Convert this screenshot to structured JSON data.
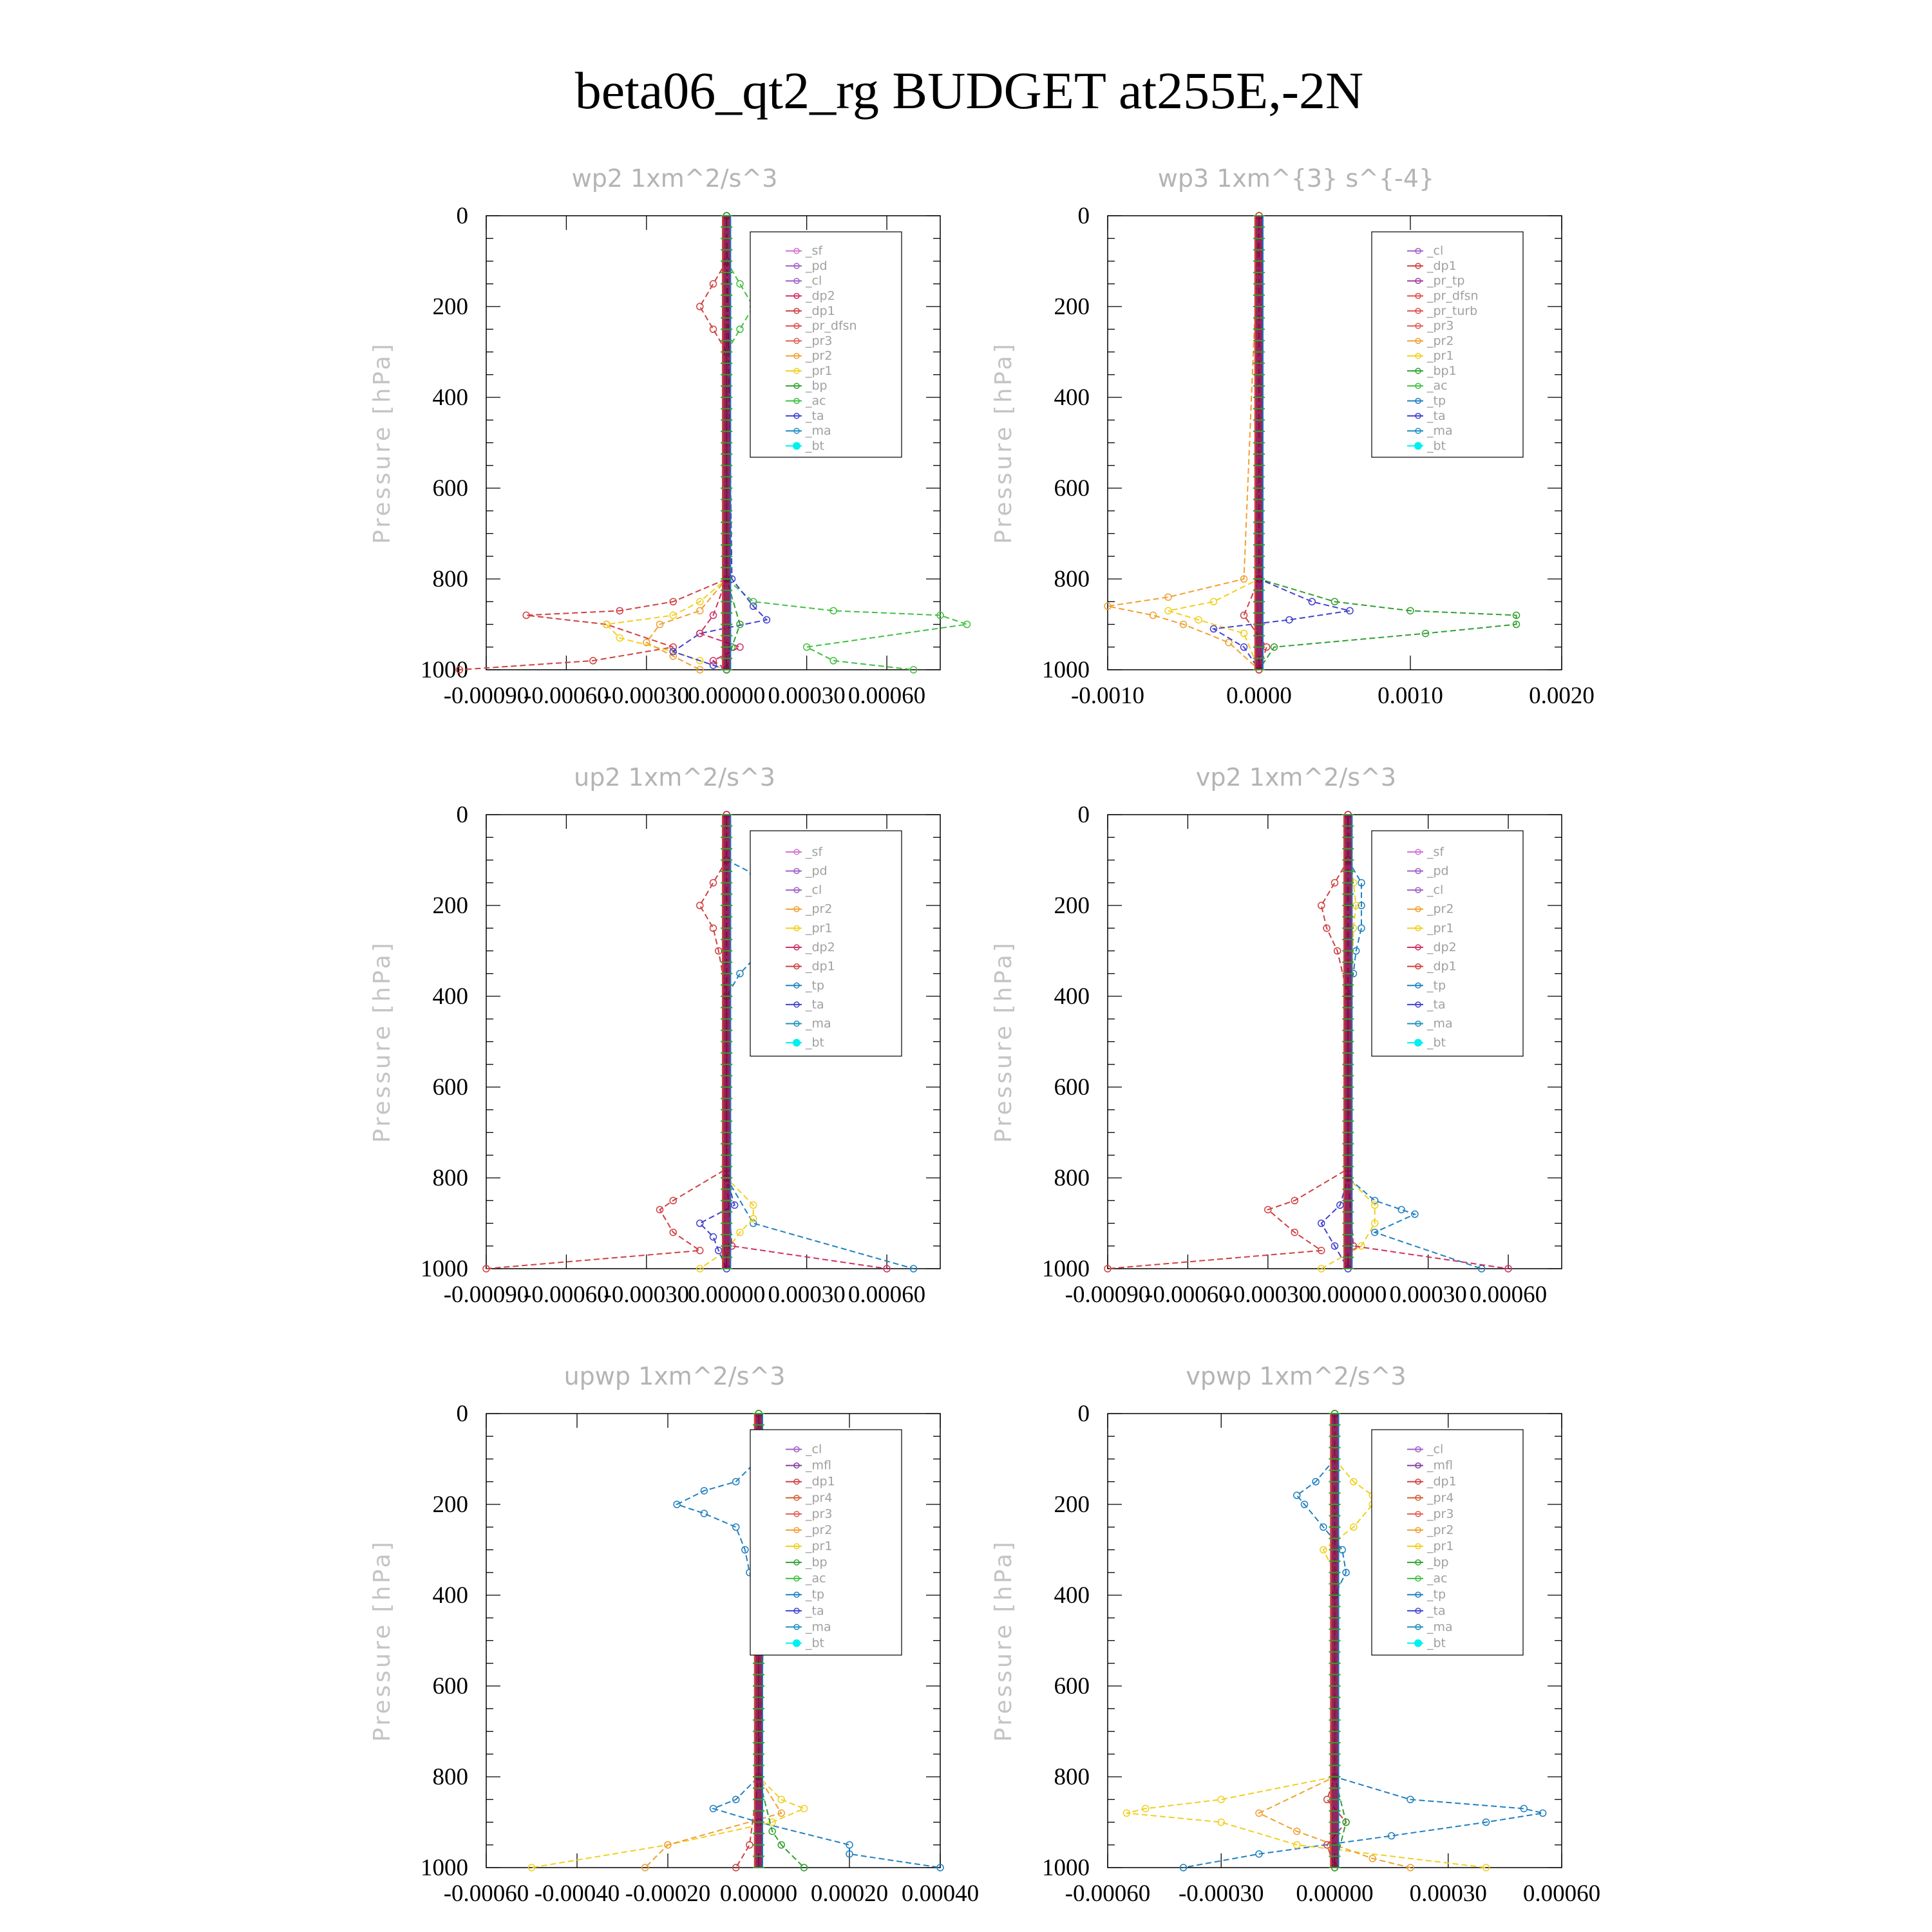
{
  "figure": {
    "title": "beta06_qt2_rg  BUDGET at255E,-2N"
  },
  "colors": {
    "sf": "#d070d0",
    "pd": "#a060c8",
    "cl": "#a060c8",
    "mfl": "#8040a0",
    "dp2": "#d03060",
    "dp1": "#d04040",
    "pr4": "#d06030",
    "pr3": "#e06050",
    "pr2": "#f0a030",
    "pr1": "#f0d020",
    "pr_dfsn": "#e05050",
    "pr_tp": "#a040a0",
    "pr_turb": "#e05050",
    "bp": "#30a030",
    "bp1": "#30a030",
    "ac": "#40c040",
    "tp": "#2080c0",
    "ta": "#4040d0",
    "ma": "#2090c0",
    "bt": "#00f0f0",
    "bar": "#800040"
  },
  "chart_data": [
    {
      "type": "line",
      "title": "wp2   1xm^2/s^3",
      "ylabel": "Pressure [hPa]",
      "xlim": [
        -0.0009,
        0.0008
      ],
      "ylim": [
        1000,
        0
      ],
      "xticks": [
        -0.0009,
        -0.0006,
        -0.0003,
        0,
        0.0003,
        0.0006
      ],
      "xtick_labels": [
        "-0.00090",
        "-0.00060",
        "-0.00030",
        "0.00000",
        "0.00030",
        "0.00060"
      ],
      "yticks": [
        0,
        200,
        400,
        600,
        800,
        1000
      ],
      "ytick_labels": [
        "0",
        "200",
        "400",
        "600",
        "800",
        "1000"
      ],
      "legend": {
        "position": "top-right",
        "entries": [
          "_sf",
          "_pd",
          "_cl",
          "_dp2",
          "_dp1",
          "_pr_dfsn",
          "_pr3",
          "_pr2",
          "_pr1",
          "_bp",
          "_ac",
          "_ta",
          "_ma",
          "_bt"
        ]
      },
      "series": [
        {
          "key": "dp1",
          "p": [
            0,
            100,
            150,
            200,
            250,
            300,
            800,
            850,
            870,
            880,
            900,
            950,
            980,
            1000
          ],
          "v": [
            0,
            0,
            -5e-05,
            -0.0001,
            -5e-05,
            0,
            0,
            -0.0002,
            -0.0004,
            -0.00075,
            -0.00045,
            -0.0002,
            -0.0005,
            -0.001
          ]
        },
        {
          "key": "ac",
          "p": [
            0,
            100,
            150,
            200,
            250,
            300,
            800,
            850,
            870,
            880,
            900,
            950,
            980,
            1000
          ],
          "v": [
            0,
            0,
            5e-05,
            0.0001,
            5e-05,
            0,
            0,
            0.0001,
            0.0004,
            0.0008,
            0.0009,
            0.0003,
            0.0004,
            0.0007
          ]
        },
        {
          "key": "pr1",
          "p": [
            0,
            800,
            850,
            880,
            900,
            930,
            960,
            980,
            1000
          ],
          "v": [
            0,
            0,
            -0.0001,
            -0.0002,
            -0.00045,
            -0.0004,
            -0.0002,
            -0.0001,
            0
          ]
        },
        {
          "key": "pr2",
          "p": [
            0,
            800,
            870,
            900,
            940,
            970,
            1000
          ],
          "v": [
            0,
            0,
            -0.0001,
            -0.00025,
            -0.0003,
            -0.0002,
            -0.0001
          ]
        },
        {
          "key": "ta",
          "p": [
            0,
            800,
            860,
            890,
            920,
            960,
            990,
            1000
          ],
          "v": [
            0,
            2e-05,
            0.0001,
            0.00015,
            -0.0001,
            -0.0002,
            -5e-05,
            0
          ]
        },
        {
          "key": "dp2",
          "p": [
            0,
            800,
            880,
            920,
            950,
            980,
            1000
          ],
          "v": [
            0,
            0,
            -5e-05,
            -0.0001,
            5e-05,
            -5e-05,
            0
          ]
        },
        {
          "key": "bp",
          "p": [
            0,
            800,
            900,
            950,
            1000
          ],
          "v": [
            0,
            0,
            5e-05,
            2e-05,
            0
          ]
        }
      ]
    },
    {
      "type": "line",
      "title": "wp3   1xm^{3} s^{-4}",
      "ylabel": "Pressure [hPa]",
      "xlim": [
        -0.001,
        0.002
      ],
      "ylim": [
        1000,
        0
      ],
      "xticks": [
        -0.001,
        0,
        0.001,
        0.002
      ],
      "xtick_labels": [
        "-0.0010",
        "0.0000",
        "0.0010",
        "0.0020"
      ],
      "yticks": [
        0,
        200,
        400,
        600,
        800,
        1000
      ],
      "ytick_labels": [
        "0",
        "200",
        "400",
        "600",
        "800",
        "1000"
      ],
      "legend": {
        "position": "top-right",
        "entries": [
          "_cl",
          "_dp1",
          "_pr_tp",
          "_pr_dfsn",
          "_pr_turb",
          "_pr3",
          "_pr2",
          "_pr1",
          "_bp1",
          "_ac",
          "_tp",
          "_ta",
          "_ma",
          "_bt"
        ]
      },
      "series": [
        {
          "key": "bp1",
          "p": [
            0,
            800,
            850,
            870,
            880,
            900,
            920,
            950,
            1000
          ],
          "v": [
            0,
            0,
            0.0005,
            0.001,
            0.0017,
            0.0017,
            0.0011,
            0.0001,
            0
          ]
        },
        {
          "key": "pr2",
          "p": [
            0,
            800,
            840,
            860,
            880,
            900,
            940,
            1000
          ],
          "v": [
            0,
            -0.0001,
            -0.0006,
            -0.001,
            -0.0007,
            -0.0005,
            -0.0002,
            0
          ]
        },
        {
          "key": "pr1",
          "p": [
            0,
            800,
            850,
            870,
            890,
            920,
            1000
          ],
          "v": [
            0,
            0,
            -0.0003,
            -0.0006,
            -0.0004,
            -0.0001,
            0
          ]
        },
        {
          "key": "ta",
          "p": [
            0,
            800,
            850,
            870,
            890,
            910,
            950,
            1000
          ],
          "v": [
            0,
            0,
            0.00035,
            0.0006,
            0.0002,
            -0.0003,
            -0.0001,
            0
          ]
        },
        {
          "key": "dp1",
          "p": [
            0,
            800,
            880,
            950,
            1000
          ],
          "v": [
            0,
            0,
            -0.0001,
            5e-05,
            0
          ]
        }
      ]
    },
    {
      "type": "line",
      "title": "up2   1xm^2/s^3",
      "ylabel": "Pressure [hPa]",
      "xlim": [
        -0.0009,
        0.0008
      ],
      "ylim": [
        1000,
        0
      ],
      "xticks": [
        -0.0009,
        -0.0006,
        -0.0003,
        0,
        0.0003,
        0.0006
      ],
      "xtick_labels": [
        "-0.00090",
        "-0.00060",
        "-0.00030",
        "0.00000",
        "0.00030",
        "0.00060"
      ],
      "yticks": [
        0,
        200,
        400,
        600,
        800,
        1000
      ],
      "ytick_labels": [
        "0",
        "200",
        "400",
        "600",
        "800",
        "1000"
      ],
      "legend": {
        "position": "top-right",
        "entries": [
          "_sf",
          "_pd",
          "_cl",
          "_pr2",
          "_pr1",
          "_dp2",
          "_dp1",
          "_tp",
          "_ta",
          "_ma",
          "_bt"
        ]
      },
      "series": [
        {
          "key": "tp",
          "p": [
            0,
            100,
            130,
            170,
            200,
            250,
            300,
            350,
            400,
            800,
            900,
            1000
          ],
          "v": [
            0,
            0,
            0.0001,
            0.0002,
            0.00025,
            0.00015,
            0.00013,
            5e-05,
            0,
            0,
            0.0001,
            0.0007
          ]
        },
        {
          "key": "dp1",
          "p": [
            0,
            100,
            150,
            200,
            250,
            300,
            400,
            780,
            850,
            870,
            920,
            960,
            1000
          ],
          "v": [
            0,
            0,
            -5e-05,
            -0.0001,
            -5e-05,
            -3e-05,
            0,
            0,
            -0.0002,
            -0.00025,
            -0.0002,
            -0.0001,
            -0.0009
          ]
        },
        {
          "key": "pr1",
          "p": [
            0,
            800,
            860,
            890,
            920,
            960,
            1000
          ],
          "v": [
            0,
            0,
            0.0001,
            0.0001,
            5e-05,
            0,
            -0.0001
          ]
        },
        {
          "key": "ta",
          "p": [
            0,
            800,
            860,
            900,
            930,
            960,
            1000
          ],
          "v": [
            0,
            0,
            3e-05,
            -0.0001,
            -5e-05,
            -3e-05,
            0
          ]
        },
        {
          "key": "dp2",
          "p": [
            0,
            800,
            950,
            1000
          ],
          "v": [
            0,
            0,
            2e-05,
            0.0006
          ]
        }
      ]
    },
    {
      "type": "line",
      "title": "vp2   1xm^2/s^3",
      "ylabel": "Pressure [hPa]",
      "xlim": [
        -0.0009,
        0.0008
      ],
      "ylim": [
        1000,
        0
      ],
      "xticks": [
        -0.0009,
        -0.0006,
        -0.0003,
        0,
        0.0003,
        0.0006
      ],
      "xtick_labels": [
        "-0.00090",
        "-0.00060",
        "-0.00030",
        "0.00000",
        "0.00030",
        "0.00060"
      ],
      "yticks": [
        0,
        200,
        400,
        600,
        800,
        1000
      ],
      "ytick_labels": [
        "0",
        "200",
        "400",
        "600",
        "800",
        "1000"
      ],
      "legend": {
        "position": "top-right",
        "entries": [
          "_sf",
          "_pd",
          "_cl",
          "_pr2",
          "_pr1",
          "_dp2",
          "_dp1",
          "_tp",
          "_ta",
          "_ma",
          "_bt"
        ]
      },
      "series": [
        {
          "key": "tp",
          "p": [
            0,
            100,
            150,
            200,
            250,
            300,
            350,
            400,
            800,
            850,
            870,
            880,
            920,
            1000
          ],
          "v": [
            0,
            0,
            5e-05,
            5e-05,
            5e-05,
            3e-05,
            2e-05,
            0,
            0,
            0.0001,
            0.0002,
            0.00025,
            0.0001,
            0.0005
          ]
        },
        {
          "key": "dp1",
          "p": [
            0,
            100,
            150,
            200,
            250,
            300,
            400,
            780,
            850,
            870,
            920,
            960,
            1000
          ],
          "v": [
            0,
            0,
            -5e-05,
            -0.0001,
            -8e-05,
            -4e-05,
            0,
            0,
            -0.0002,
            -0.0003,
            -0.0002,
            -0.0001,
            -0.0009
          ]
        },
        {
          "key": "pr1",
          "p": [
            0,
            150,
            200,
            250,
            800,
            860,
            900,
            950,
            1000
          ],
          "v": [
            0,
            2e-05,
            3e-05,
            2e-05,
            0,
            0.0001,
            0.0001,
            5e-05,
            -0.0001
          ]
        },
        {
          "key": "ta",
          "p": [
            0,
            800,
            860,
            900,
            950,
            1000
          ],
          "v": [
            0,
            0,
            -3e-05,
            -0.0001,
            -5e-05,
            0
          ]
        },
        {
          "key": "dp2",
          "p": [
            0,
            800,
            950,
            1000
          ],
          "v": [
            0,
            0,
            2e-05,
            0.0006
          ]
        }
      ]
    },
    {
      "type": "line",
      "title": "upwp   1xm^2/s^3",
      "ylabel": "Pressure [hPa]",
      "xlim": [
        -0.0006,
        0.0004
      ],
      "ylim": [
        1000,
        0
      ],
      "xticks": [
        -0.0006,
        -0.0004,
        -0.0002,
        0,
        0.0002,
        0.0004
      ],
      "xtick_labels": [
        "-0.00060",
        "-0.00040",
        "-0.00020",
        "0.00000",
        "0.00020",
        "0.00040"
      ],
      "yticks": [
        0,
        200,
        400,
        600,
        800,
        1000
      ],
      "ytick_labels": [
        "0",
        "200",
        "400",
        "600",
        "800",
        "1000"
      ],
      "legend": {
        "position": "top-right",
        "entries": [
          "_cl",
          "_mfl",
          "_dp1",
          "_pr4",
          "_pr3",
          "_pr2",
          "_pr1",
          "_bp",
          "_ac",
          "_tp",
          "_ta",
          "_ma",
          "_bt"
        ]
      },
      "series": [
        {
          "key": "tp",
          "p": [
            0,
            100,
            150,
            170,
            200,
            220,
            250,
            300,
            350,
            400,
            800,
            850,
            870,
            900,
            950,
            970,
            1000
          ],
          "v": [
            0,
            0,
            -5e-05,
            -0.00012,
            -0.00018,
            -0.00012,
            -5e-05,
            -3e-05,
            -2e-05,
            0,
            0,
            -5e-05,
            -0.0001,
            0,
            0.0002,
            0.0002,
            0.0004
          ]
        },
        {
          "key": "pr1",
          "p": [
            0,
            100,
            150,
            200,
            250,
            300,
            800,
            850,
            870,
            900,
            950,
            1000
          ],
          "v": [
            0,
            0,
            5e-05,
            0.0001,
            5e-05,
            0,
            0,
            5e-05,
            0.0001,
            3e-05,
            -0.0002,
            -0.0005
          ]
        },
        {
          "key": "pr2",
          "p": [
            0,
            150,
            200,
            250,
            800,
            880,
            950,
            1000
          ],
          "v": [
            0,
            2e-05,
            3e-05,
            2e-05,
            0,
            5e-05,
            -0.0002,
            -0.00025
          ]
        },
        {
          "key": "dp1",
          "p": [
            0,
            800,
            950,
            1000
          ],
          "v": [
            0,
            0,
            -2e-05,
            -5e-05
          ]
        },
        {
          "key": "bp",
          "p": [
            0,
            800,
            920,
            950,
            1000
          ],
          "v": [
            0,
            0,
            3e-05,
            5e-05,
            0.0001
          ]
        }
      ]
    },
    {
      "type": "line",
      "title": "vpwp   1xm^2/s^3",
      "ylabel": "Pressure [hPa]",
      "xlim": [
        -0.0006,
        0.0006
      ],
      "ylim": [
        1000,
        0
      ],
      "xticks": [
        -0.0006,
        -0.0003,
        0,
        0.0003,
        0.0006
      ],
      "xtick_labels": [
        "-0.00060",
        "-0.00030",
        "0.00000",
        "0.00030",
        "0.00060"
      ],
      "yticks": [
        0,
        200,
        400,
        600,
        800,
        1000
      ],
      "ytick_labels": [
        "0",
        "200",
        "400",
        "600",
        "800",
        "1000"
      ],
      "legend": {
        "position": "top-right",
        "entries": [
          "_cl",
          "_mfl",
          "_dp1",
          "_pr4",
          "_pr3",
          "_pr2",
          "_pr1",
          "_bp",
          "_ac",
          "_tp",
          "_ta",
          "_ma",
          "_bt"
        ]
      },
      "series": [
        {
          "key": "tp",
          "p": [
            0,
            100,
            150,
            180,
            200,
            250,
            300,
            350,
            400,
            800,
            850,
            870,
            880,
            900,
            930,
            970,
            1000
          ],
          "v": [
            0,
            0,
            -5e-05,
            -0.0001,
            -8e-05,
            -3e-05,
            2e-05,
            3e-05,
            0,
            0,
            0.0002,
            0.0005,
            0.00055,
            0.0004,
            0.00015,
            -0.0002,
            -0.0004
          ]
        },
        {
          "key": "pr1",
          "p": [
            0,
            100,
            150,
            180,
            200,
            250,
            300,
            350,
            800,
            850,
            870,
            880,
            900,
            950,
            1000
          ],
          "v": [
            0,
            0,
            5e-05,
            0.0001,
            0.0001,
            5e-05,
            -3e-05,
            0,
            0,
            -0.0003,
            -0.0005,
            -0.00055,
            -0.0003,
            -0.0001,
            0.0004
          ]
        },
        {
          "key": "pr2",
          "p": [
            0,
            800,
            880,
            920,
            980,
            1000
          ],
          "v": [
            0,
            0,
            -0.0002,
            -0.0001,
            0.0001,
            0.0002
          ]
        },
        {
          "key": "dp1",
          "p": [
            0,
            800,
            850,
            900,
            950,
            1000
          ],
          "v": [
            0,
            0,
            -2e-05,
            3e-05,
            -2e-05,
            0
          ]
        },
        {
          "key": "bp",
          "p": [
            0,
            800,
            900,
            1000
          ],
          "v": [
            0,
            0,
            3e-05,
            0
          ]
        }
      ]
    }
  ]
}
